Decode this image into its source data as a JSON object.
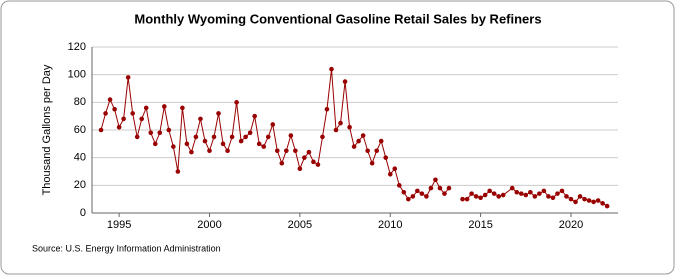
{
  "chart_data": {
    "type": "line",
    "title": "Monthly Wyoming Conventional Gasoline Retail Sales by Refiners",
    "y_label": "Thousand Gallons per Day",
    "source": "Source: U.S. Energy Information Administration",
    "x": [
      1994.0,
      1994.25,
      1994.5,
      1994.75,
      1995.0,
      1995.25,
      1995.5,
      1995.75,
      1996.0,
      1996.25,
      1996.5,
      1996.75,
      1997.0,
      1997.25,
      1997.5,
      1997.75,
      1998.0,
      1998.25,
      1998.5,
      1998.75,
      1999.0,
      1999.25,
      1999.5,
      1999.75,
      2000.0,
      2000.25,
      2000.5,
      2000.75,
      2001.0,
      2001.25,
      2001.5,
      2001.75,
      2002.0,
      2002.25,
      2002.5,
      2002.75,
      2003.0,
      2003.25,
      2003.5,
      2003.75,
      2004.0,
      2004.25,
      2004.5,
      2004.75,
      2005.0,
      2005.25,
      2005.5,
      2005.75,
      2006.0,
      2006.25,
      2006.5,
      2006.75,
      2007.0,
      2007.25,
      2007.5,
      2007.75,
      2008.0,
      2008.25,
      2008.5,
      2008.75,
      2009.0,
      2009.25,
      2009.5,
      2009.75,
      2010.0,
      2010.25,
      2010.5,
      2010.75,
      2011.0,
      2011.25,
      2011.5,
      2011.75,
      2012.0,
      2012.25,
      2012.5,
      2012.75,
      2013.0,
      2013.25,
      2013.5,
      2014.0,
      2014.25,
      2014.5,
      2014.75,
      2015.0,
      2015.25,
      2015.5,
      2015.75,
      2016.0,
      2016.25,
      2016.75,
      2017.0,
      2017.25,
      2017.5,
      2017.75,
      2018.0,
      2018.25,
      2018.5,
      2018.75,
      2019.0,
      2019.25,
      2019.5,
      2019.75,
      2020.0,
      2020.25,
      2020.5,
      2020.75,
      2021.0,
      2021.25,
      2021.5,
      2021.75,
      2022.0
    ],
    "series": [
      {
        "name": "Wyoming Conventional Gasoline Retail Sales by Refiners",
        "color": "#990000",
        "values": [
          60,
          72,
          82,
          75,
          62,
          68,
          98,
          72,
          55,
          68,
          76,
          58,
          50,
          58,
          77,
          60,
          48,
          30,
          76,
          50,
          44,
          55,
          68,
          52,
          45,
          55,
          72,
          50,
          45,
          55,
          80,
          52,
          55,
          58,
          70,
          50,
          48,
          55,
          64,
          45,
          36,
          45,
          56,
          45,
          32,
          40,
          44,
          37,
          35,
          55,
          75,
          104,
          60,
          65,
          95,
          62,
          48,
          52,
          56,
          45,
          36,
          45,
          52,
          40,
          28,
          32,
          20,
          15,
          10,
          12,
          16,
          14,
          12,
          18,
          24,
          18,
          14,
          18,
          null,
          10,
          10,
          14,
          12,
          11,
          13,
          16,
          14,
          12,
          13,
          18,
          15,
          14,
          13,
          15,
          12,
          14,
          16,
          12,
          11,
          14,
          16,
          12,
          10,
          8,
          12,
          10,
          9,
          8,
          9,
          7,
          5
        ]
      }
    ],
    "xlim": [
      1993.5,
      2022.6
    ],
    "xticks": [
      1995,
      2000,
      2005,
      2010,
      2015,
      2020
    ],
    "ylim": [
      0,
      120
    ],
    "yticks": [
      0,
      20,
      40,
      60,
      80,
      100,
      120
    ],
    "grid": true
  }
}
